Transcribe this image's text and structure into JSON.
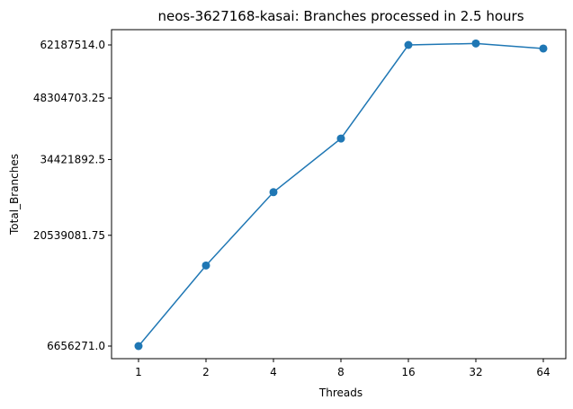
{
  "chart_data": {
    "type": "line",
    "title": "neos-3627168-kasai: Branches processed in 2.5 hours",
    "xlabel": "Threads",
    "ylabel": "Total_Branches",
    "x_scale": "log2",
    "y_scale": "sqrt",
    "categories": [
      "1",
      "2",
      "4",
      "8",
      "16",
      "32",
      "64"
    ],
    "x": [
      1,
      2,
      4,
      8,
      16,
      32,
      64
    ],
    "yticks": [
      6656271.0,
      20539081.75,
      34421892.5,
      48304703.25,
      62187514.0
    ],
    "ytick_labels": [
      "6656271.0",
      "20539081.75",
      "34421892.5",
      "48304703.25",
      "62187514.0"
    ],
    "series": [
      {
        "color": "#1f77b4",
        "marker": "circle",
        "values": [
          6656271,
          16000000,
          28000000,
          38900000,
          62187514,
          62600000,
          61200000
        ]
      }
    ],
    "grid": false,
    "legend": false
  }
}
